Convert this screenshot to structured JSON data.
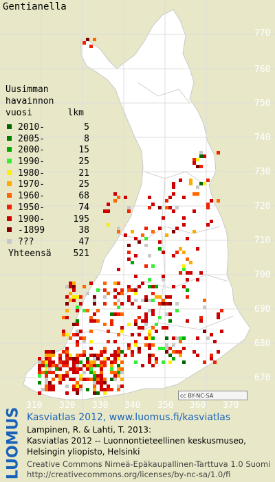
{
  "title": "Gentianella",
  "legend": {
    "heading_lines": [
      "Uusimman",
      "havainnon",
      "vuosi        lkm"
    ],
    "entries": [
      {
        "label": "2010-",
        "count": "5",
        "color": "#006400"
      },
      {
        "label": "2005-",
        "count": "8",
        "color": "#008000"
      },
      {
        "label": "2000-",
        "count": "15",
        "color": "#00aa00"
      },
      {
        "label": "1990-",
        "count": "25",
        "color": "#33ee33"
      },
      {
        "label": "1980-",
        "count": "21",
        "color": "#ffee00"
      },
      {
        "label": "1970-",
        "count": "25",
        "color": "#ffaa00"
      },
      {
        "label": "1960-",
        "count": "68",
        "color": "#ff6600"
      },
      {
        "label": "1950-",
        "count": "74",
        "color": "#ee2200"
      },
      {
        "label": "1900-",
        "count": "195",
        "color": "#cc0000"
      },
      {
        "label": "-1899",
        "count": "38",
        "color": "#800000"
      },
      {
        "label": "???",
        "count": "47",
        "color": "#c8c8c8"
      }
    ],
    "total_label": "Yhteensä",
    "total_count": "521"
  },
  "y_ticks": [
    "770",
    "760",
    "750",
    "740",
    "730",
    "720",
    "710",
    "700",
    "690",
    "680",
    "670"
  ],
  "x_ticks": [
    "310",
    "320",
    "330",
    "340",
    "350",
    "360",
    "370"
  ],
  "license_badge": "cc BY-NC-SA",
  "footer": {
    "brand": "LUOMUS",
    "atlas": "Kasviatlas 2012, www.luomus.fi/kasviatlas",
    "citation_1": "Lampinen, R. & Lahti, T. 2013:",
    "citation_2": "Kasviatlas 2012 -- Luonnontieteellinen keskusmuseo,",
    "citation_3": "Helsingin yliopisto, Helsinki",
    "license_1": "Creative Commons Nimeä-Epäkaupallinen-Tarttuva 1.0 Suomi",
    "license_2": "http://creativecommons.org/licenses/by-nc-sa/1.0/fi"
  }
}
